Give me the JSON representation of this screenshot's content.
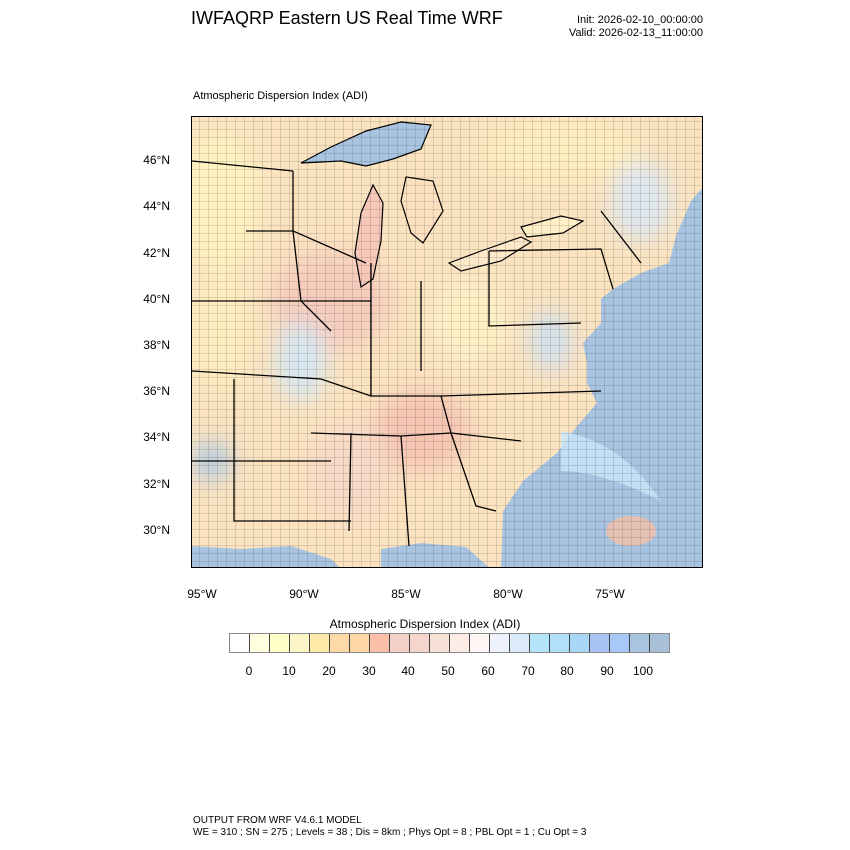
{
  "header": {
    "title": "IWFAQRP Eastern US Real Time WRF",
    "init": "Init: 2026-02-10_00:00:00",
    "valid": "Valid: 2026-02-13_11:00:00"
  },
  "map": {
    "title": "Atmospheric Dispersion Index   (ADI)",
    "lat_labels": [
      "46°N",
      "44°N",
      "42°N",
      "40°N",
      "38°N",
      "36°N",
      "34°N",
      "32°N",
      "30°N"
    ],
    "lon_labels": [
      "95°W",
      "90°W",
      "85°W",
      "80°W",
      "75°W"
    ],
    "colors": {
      "land": "#fbe3c0",
      "water": "#a8c4e0",
      "lake": "#f5d0c8"
    }
  },
  "colorbar": {
    "title": "Atmospheric Dispersion Index  (ADI)",
    "labels": [
      "0",
      "10",
      "20",
      "30",
      "40",
      "50",
      "60",
      "70",
      "80",
      "90",
      "100"
    ],
    "levels": [
      0,
      5,
      10,
      15,
      20,
      25,
      30,
      35,
      40,
      45,
      50,
      55,
      60,
      65,
      70,
      75,
      80,
      85,
      90,
      95,
      100
    ],
    "colors": [
      "#ffffff",
      "#ffffe0",
      "#ffffc8",
      "#fbf5c8",
      "#fdeaa8",
      "#fdd9a8",
      "#fdd8a4",
      "#fcbfa8",
      "#f5d0c8",
      "#f5d5cc",
      "#f8e2d8",
      "#fdebe5",
      "#fff5f5",
      "#eef2fc",
      "#dcebfa",
      "#b4e4fa",
      "#b0e0fa",
      "#a8d8f5",
      "#a8c4f5",
      "#a8c8f8",
      "#a8c4e0",
      "#a8c0d8"
    ]
  },
  "footer": {
    "line1": "OUTPUT FROM WRF V4.6.1 MODEL",
    "line2": "WE = 310 ; SN = 275 ; Levels = 38 ; Dis = 8km ; Phys Opt = 8 ; PBL Opt = 1 ; Cu Opt = 3"
  }
}
